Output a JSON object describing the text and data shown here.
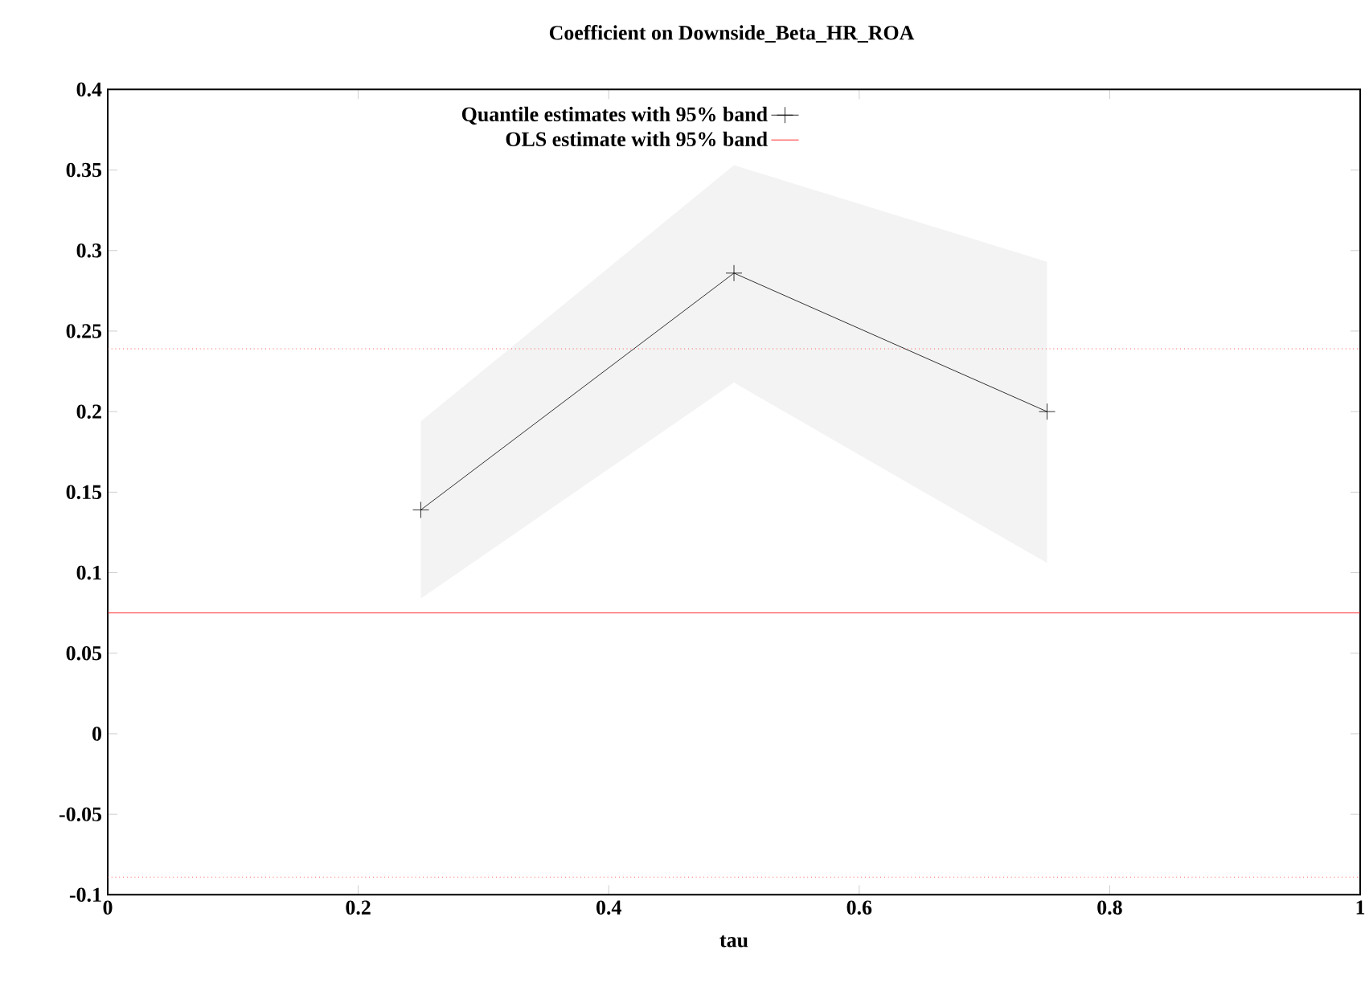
{
  "chart_data": {
    "type": "line",
    "title": "Coefficient on Downside_Beta_HR_ROA",
    "xlabel": "tau",
    "xlim": [
      0,
      1
    ],
    "xticks": [
      0,
      0.2,
      0.4,
      0.6,
      0.8,
      1
    ],
    "ylim": [
      -0.1,
      0.4
    ],
    "yticks": [
      -0.1,
      -0.05,
      0,
      0.05,
      0.1,
      0.15,
      0.2,
      0.25,
      0.3,
      0.35,
      0.4
    ],
    "legend": "top left",
    "grid": false,
    "series": [
      {
        "name": "Quantile estimates with 95% band",
        "color": "#000000",
        "marker": "cross",
        "x": [
          0.25,
          0.5,
          0.75
        ],
        "values": [
          0.139,
          0.286,
          0.2
        ],
        "lower": [
          0.084,
          0.218,
          0.106
        ],
        "upper": [
          0.194,
          0.353,
          0.293
        ]
      },
      {
        "name": "OLS estimate with 95% band",
        "color": "#ff0000",
        "marker": "none",
        "x": [
          0,
          1
        ],
        "values": [
          0.075,
          0.075
        ]
      }
    ],
    "ref_lines": [
      {
        "axis": "y",
        "value": 0.239,
        "color": "#ff0000",
        "line_style": "dotted"
      },
      {
        "axis": "y",
        "value": -0.089,
        "color": "#ff0000",
        "line_style": "dotted"
      }
    ]
  }
}
